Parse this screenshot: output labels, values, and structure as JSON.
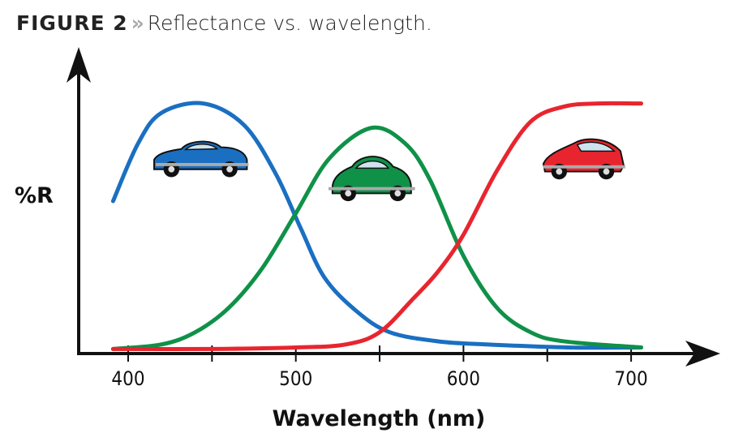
{
  "header": {
    "figure_label": "FIGURE 2",
    "separator": "»",
    "caption": "Reflectance vs. wavelength."
  },
  "chart_data": {
    "type": "line",
    "title": "Reflectance vs. wavelength.",
    "xlabel": "Wavelength (nm)",
    "ylabel": "%R",
    "xlim": [
      375,
      750
    ],
    "ylim": [
      0,
      100
    ],
    "x_ticks": [
      400,
      450,
      500,
      550,
      600,
      650,
      700
    ],
    "x_tick_labels": [
      "400",
      "500",
      "600",
      "700"
    ],
    "y_ticks": [],
    "grid": false,
    "series": [
      {
        "color": "#1a6fc1",
        "icon": "blue-car",
        "x": [
          391,
          406,
          420,
          445,
          469,
          488,
          503,
          517,
          536,
          556,
          585,
          614,
          662,
          706
        ],
        "y": [
          50,
          69,
          79,
          82,
          75,
          59,
          41,
          25,
          14,
          7,
          4,
          3,
          2,
          2
        ]
      },
      {
        "color": "#0f9148",
        "icon": "green-car",
        "x": [
          391,
          420,
          440,
          460,
          480,
          500,
          520,
          545,
          565,
          580,
          600,
          620,
          640,
          660,
          706
        ],
        "y": [
          1.5,
          3,
          7,
          15,
          28,
          46,
          64,
          74,
          69,
          57,
          32,
          15,
          7,
          4,
          2
        ]
      },
      {
        "color": "#e8252f",
        "icon": "red-car",
        "x": [
          391,
          450,
          500,
          530,
          550,
          570,
          585,
          600,
          620,
          640,
          660,
          680,
          706
        ],
        "y": [
          1.5,
          1.5,
          2,
          3,
          7,
          18,
          27,
          39,
          60,
          76,
          81,
          82,
          82
        ]
      }
    ]
  }
}
